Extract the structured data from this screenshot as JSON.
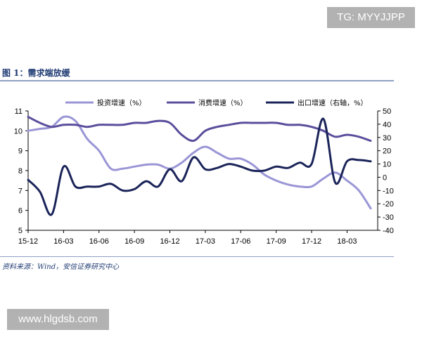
{
  "watermarks": {
    "top": "TG: MYYJJPP",
    "bottom": "www.hlgdsb.com"
  },
  "figure": {
    "title": "图 1：需求端放缓",
    "source": "资料来源：Wind，安信证券研究中心"
  },
  "colors": {
    "investment": "#9a96d6",
    "consumption": "#5b4e9c",
    "exports": "#1b2459",
    "title": "#1f3b73"
  },
  "chart_data": {
    "type": "line",
    "title": "",
    "xlabel": "",
    "ylabel": "",
    "y_left": {
      "lim": [
        5,
        11
      ],
      "ticks": [
        5,
        6,
        7,
        8,
        9,
        10,
        11
      ]
    },
    "y_right": {
      "lim": [
        -40,
        50
      ],
      "ticks": [
        -40,
        -30,
        -20,
        -10,
        0,
        10,
        20,
        30,
        40,
        50
      ]
    },
    "x_ticks": [
      "15-12",
      "16-03",
      "16-06",
      "16-09",
      "16-12",
      "17-03",
      "17-06",
      "17-09",
      "17-12",
      "18-03"
    ],
    "legend_position": "top",
    "grid": false,
    "series": [
      {
        "name": "投资增速（%）",
        "axis": "left",
        "color_key": "investment",
        "points": [
          [
            "2015-12",
            10.0
          ],
          [
            "2016-01",
            10.1
          ],
          [
            "2016-02",
            10.2
          ],
          [
            "2016-03",
            10.7
          ],
          [
            "2016-04",
            10.5
          ],
          [
            "2016-05",
            9.6
          ],
          [
            "2016-06",
            9.0
          ],
          [
            "2016-07",
            8.1
          ],
          [
            "2016-08",
            8.1
          ],
          [
            "2016-09",
            8.2
          ],
          [
            "2016-10",
            8.3
          ],
          [
            "2016-11",
            8.3
          ],
          [
            "2016-12",
            8.1
          ],
          [
            "2017-01",
            8.4
          ],
          [
            "2017-02",
            8.9
          ],
          [
            "2017-03",
            9.2
          ],
          [
            "2017-04",
            8.9
          ],
          [
            "2017-05",
            8.6
          ],
          [
            "2017-06",
            8.6
          ],
          [
            "2017-07",
            8.3
          ],
          [
            "2017-08",
            7.8
          ],
          [
            "2017-09",
            7.5
          ],
          [
            "2017-10",
            7.3
          ],
          [
            "2017-11",
            7.2
          ],
          [
            "2017-12",
            7.2
          ],
          [
            "2018-01",
            7.6
          ],
          [
            "2018-02",
            7.9
          ],
          [
            "2018-03",
            7.5
          ],
          [
            "2018-04",
            7.0
          ],
          [
            "2018-05",
            6.1
          ]
        ]
      },
      {
        "name": "消费增速（%）",
        "axis": "left",
        "color_key": "consumption",
        "points": [
          [
            "2015-12",
            10.7
          ],
          [
            "2016-01",
            10.4
          ],
          [
            "2016-02",
            10.2
          ],
          [
            "2016-03",
            10.3
          ],
          [
            "2016-04",
            10.3
          ],
          [
            "2016-05",
            10.2
          ],
          [
            "2016-06",
            10.3
          ],
          [
            "2016-07",
            10.3
          ],
          [
            "2016-08",
            10.3
          ],
          [
            "2016-09",
            10.4
          ],
          [
            "2016-10",
            10.4
          ],
          [
            "2016-11",
            10.5
          ],
          [
            "2016-12",
            10.4
          ],
          [
            "2017-01",
            9.8
          ],
          [
            "2017-02",
            9.5
          ],
          [
            "2017-03",
            10.0
          ],
          [
            "2017-04",
            10.2
          ],
          [
            "2017-05",
            10.3
          ],
          [
            "2017-06",
            10.4
          ],
          [
            "2017-07",
            10.4
          ],
          [
            "2017-08",
            10.4
          ],
          [
            "2017-09",
            10.4
          ],
          [
            "2017-10",
            10.3
          ],
          [
            "2017-11",
            10.3
          ],
          [
            "2017-12",
            10.2
          ],
          [
            "2018-01",
            10.0
          ],
          [
            "2018-02",
            9.7
          ],
          [
            "2018-03",
            9.8
          ],
          [
            "2018-04",
            9.7
          ],
          [
            "2018-05",
            9.5
          ]
        ]
      },
      {
        "name": "出口增速（右轴，%）",
        "axis": "right",
        "color_key": "exports",
        "points": [
          [
            "2015-12",
            -2
          ],
          [
            "2016-01",
            -11
          ],
          [
            "2016-02",
            -28
          ],
          [
            "2016-03",
            8
          ],
          [
            "2016-04",
            -7
          ],
          [
            "2016-05",
            -7
          ],
          [
            "2016-06",
            -7
          ],
          [
            "2016-07",
            -5
          ],
          [
            "2016-08",
            -10
          ],
          [
            "2016-09",
            -9
          ],
          [
            "2016-10",
            -3
          ],
          [
            "2016-11",
            -7
          ],
          [
            "2016-12",
            6
          ],
          [
            "2017-01",
            -3
          ],
          [
            "2017-02",
            15
          ],
          [
            "2017-03",
            6
          ],
          [
            "2017-04",
            7
          ],
          [
            "2017-05",
            10
          ],
          [
            "2017-06",
            8
          ],
          [
            "2017-07",
            5
          ],
          [
            "2017-08",
            5
          ],
          [
            "2017-09",
            8
          ],
          [
            "2017-10",
            7
          ],
          [
            "2017-11",
            11
          ],
          [
            "2017-12",
            10
          ],
          [
            "2018-01",
            44
          ],
          [
            "2018-02",
            -4
          ],
          [
            "2018-03",
            12
          ],
          [
            "2018-04",
            13
          ],
          [
            "2018-05",
            12
          ]
        ]
      }
    ]
  }
}
